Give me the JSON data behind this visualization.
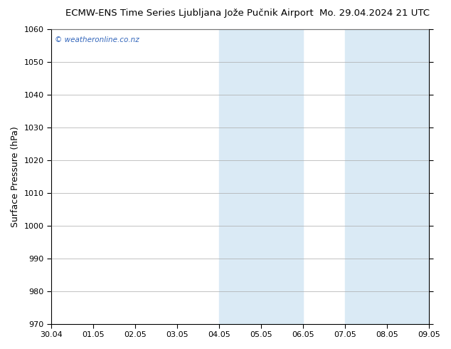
{
  "title_left": "ECMW-ENS Time Series Ljubljana Jože Pučnik Airport",
  "title_right": "Mo. 29.04.2024 21 UTC",
  "ylabel": "Surface Pressure (hPa)",
  "ylim": [
    970,
    1060
  ],
  "yticks": [
    970,
    980,
    990,
    1000,
    1010,
    1020,
    1030,
    1040,
    1050,
    1060
  ],
  "xtick_labels": [
    "30.04",
    "01.05",
    "02.05",
    "03.05",
    "04.05",
    "05.05",
    "06.05",
    "07.05",
    "08.05",
    "09.05"
  ],
  "xtick_positions": [
    0,
    1,
    2,
    3,
    4,
    5,
    6,
    7,
    8,
    9
  ],
  "shaded_bands": [
    {
      "xmin": 4,
      "xmax": 5
    },
    {
      "xmin": 5,
      "xmax": 6
    },
    {
      "xmin": 7,
      "xmax": 8
    },
    {
      "xmin": 8,
      "xmax": 9
    }
  ],
  "shade_color": "#daeaf5",
  "shade_alpha": 1.0,
  "background_color": "#ffffff",
  "plot_bg_color": "#ffffff",
  "watermark": "© weatheronline.co.nz",
  "watermark_color": "#3366bb",
  "title_fontsize": 9.5,
  "axis_fontsize": 9,
  "tick_fontsize": 8,
  "ylabel_fontsize": 9,
  "figsize": [
    6.34,
    4.9
  ],
  "dpi": 100
}
